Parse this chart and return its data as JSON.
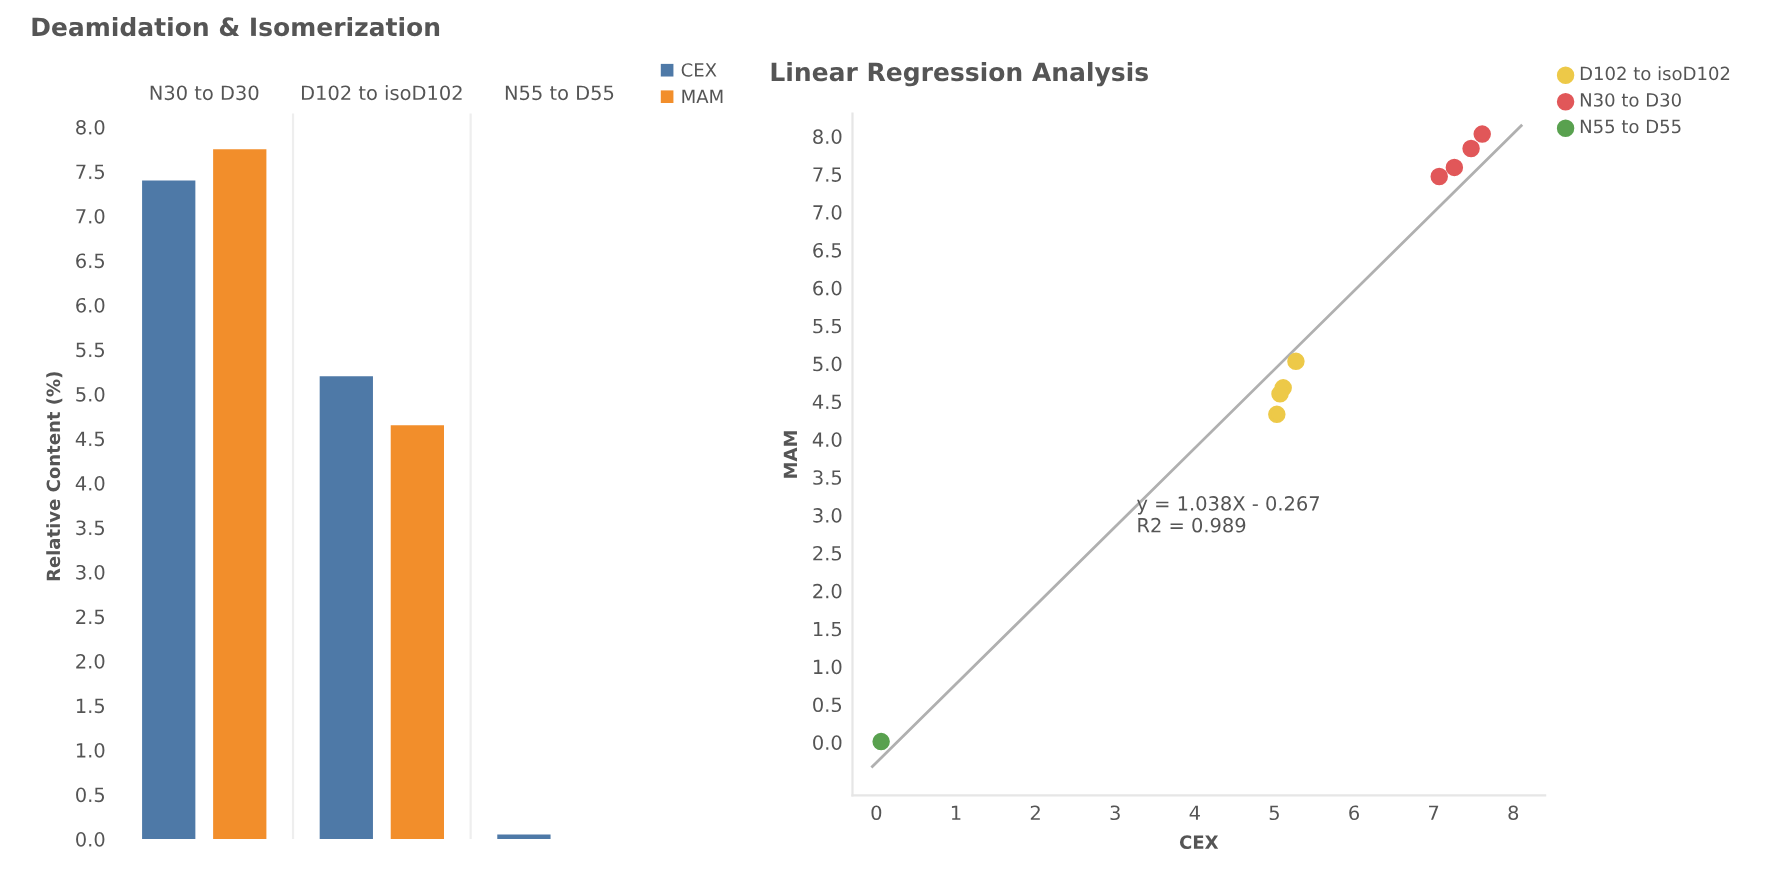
{
  "chart_data": [
    {
      "type": "bar",
      "title": "Deamidation & Isomerization",
      "ylabel": "Relative Content (%)",
      "categories": [
        "N30 to D30",
        "D102 to isoD102",
        "N55 to D55"
      ],
      "series": [
        {
          "name": "CEX",
          "color": "#4e79a7",
          "values": [
            7.4,
            5.2,
            0.05
          ]
        },
        {
          "name": "MAM",
          "color": "#f28e2b",
          "values": [
            7.75,
            4.65,
            null
          ]
        }
      ],
      "ylim": [
        0,
        8.15
      ],
      "yticks": [
        {
          "value": 0,
          "label": "0.0"
        },
        0.5,
        {
          "value": 1,
          "label": "1.0"
        },
        1.5,
        {
          "value": 2,
          "label": "2.0"
        },
        2.5,
        {
          "value": 3,
          "label": "3.0"
        },
        3.5,
        {
          "value": 4,
          "label": "4.0"
        },
        4.5,
        {
          "value": 5,
          "label": "5.0"
        },
        5.5,
        {
          "value": 6,
          "label": "6.0"
        },
        6.5,
        {
          "value": 7,
          "label": "7.0"
        },
        7.5,
        {
          "value": 8,
          "label": "8.0"
        }
      ],
      "grid": false,
      "legend": "top right"
    },
    {
      "type": "scatter",
      "title": "Linear Regression Analysis",
      "xlabel": "CEX",
      "ylabel": "MAM",
      "series": [
        {
          "name": "D102 to isoD102",
          "color": "#edc948",
          "x": [
            5.27,
            5.11,
            5.07,
            5.03
          ],
          "values": [
            5.03,
            4.68,
            4.6,
            4.33
          ]
        },
        {
          "name": "N30 to D30",
          "color": "#e15759",
          "x": [
            7.07,
            7.26,
            7.47,
            7.61
          ],
          "values": [
            7.47,
            7.59,
            7.84,
            8.03
          ]
        },
        {
          "name": "N55 to D55",
          "color": "#59a14f",
          "x": [
            0.06
          ],
          "values": [
            0.01
          ]
        },
        {
          "type": "line",
          "marker": "none",
          "color": "#b0b0b0",
          "x": [
            -0.05,
            8.1
          ],
          "values": [
            -0.32,
            8.14
          ]
        }
      ],
      "xlim": [
        -0.3,
        8.4
      ],
      "ylim": [
        -0.7,
        8.3
      ],
      "xticks": [
        0,
        1,
        2,
        3,
        4,
        5,
        6,
        7,
        8
      ],
      "yticks": [
        {
          "value": 0,
          "label": "0.0"
        },
        0.5,
        {
          "value": 1,
          "label": "1.0"
        },
        1.5,
        {
          "value": 2,
          "label": "2.0"
        },
        2.5,
        {
          "value": 3,
          "label": "3.0"
        },
        3.5,
        {
          "value": 4,
          "label": "4.0"
        },
        4.5,
        {
          "value": 5,
          "label": "5.0"
        },
        5.5,
        {
          "value": 6,
          "label": "6.0"
        },
        6.5,
        {
          "value": 7,
          "label": "7.0"
        },
        7.5,
        {
          "value": 8,
          "label": "8.0"
        }
      ],
      "annotations": [
        "y = 1.038X - 0.267\nR2 = 0.989"
      ],
      "marker": "circle",
      "grid": false,
      "legend": "top right"
    }
  ]
}
